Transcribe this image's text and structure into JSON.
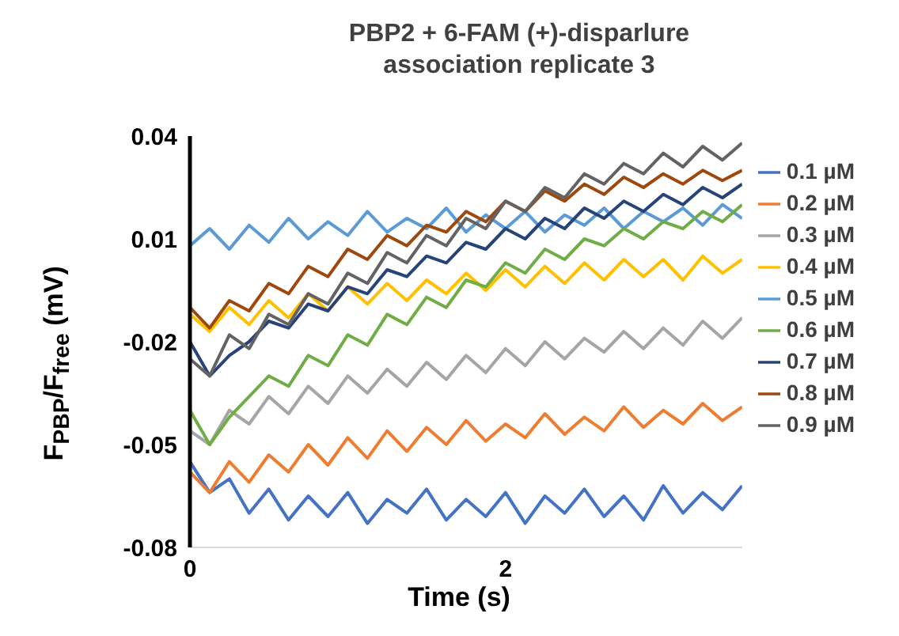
{
  "chart_data": {
    "type": "line",
    "title": "PBP2 + 6-FAM (+)-disparlure association replicate 3",
    "xlabel": "Time (s)",
    "ylabel": "F$_{PBP}$/F$_{free}$ (mV)",
    "legend": "right",
    "x": [
      0,
      0.125,
      0.25,
      0.375,
      0.5,
      0.625,
      0.75,
      0.875,
      1,
      1.125,
      1.25,
      1.375,
      1.5,
      1.625,
      1.75,
      1.875,
      2,
      2.125,
      2.25,
      2.375,
      2.5,
      2.625,
      2.75,
      2.875,
      3,
      3.125,
      3.25,
      3.375,
      3.5
    ],
    "xlim": [
      0,
      3.5
    ],
    "xticks": [
      0,
      2
    ],
    "ylim": [
      -0.08,
      0.04
    ],
    "yticks": [
      -0.08,
      -0.05,
      -0.02,
      0.01,
      0.04
    ],
    "series": [
      {
        "name": "0.1 µM",
        "color": "#4472c4",
        "values": [
          -0.055,
          -0.064,
          -0.06,
          -0.07,
          -0.063,
          -0.072,
          -0.065,
          -0.071,
          -0.064,
          -0.073,
          -0.066,
          -0.07,
          -0.063,
          -0.072,
          -0.066,
          -0.071,
          -0.064,
          -0.073,
          -0.065,
          -0.07,
          -0.063,
          -0.071,
          -0.065,
          -0.072,
          -0.062,
          -0.07,
          -0.064,
          -0.069,
          -0.062
        ]
      },
      {
        "name": "0.2 µM",
        "color": "#ed7d31",
        "values": [
          -0.058,
          -0.064,
          -0.055,
          -0.061,
          -0.053,
          -0.058,
          -0.05,
          -0.056,
          -0.048,
          -0.054,
          -0.046,
          -0.052,
          -0.045,
          -0.05,
          -0.043,
          -0.049,
          -0.044,
          -0.048,
          -0.041,
          -0.047,
          -0.042,
          -0.046,
          -0.039,
          -0.045,
          -0.04,
          -0.044,
          -0.038,
          -0.043,
          -0.039
        ]
      },
      {
        "name": "0.3 µM",
        "color": "#a5a5a5",
        "values": [
          -0.046,
          -0.05,
          -0.04,
          -0.044,
          -0.036,
          -0.041,
          -0.033,
          -0.038,
          -0.03,
          -0.035,
          -0.028,
          -0.033,
          -0.026,
          -0.031,
          -0.024,
          -0.029,
          -0.022,
          -0.027,
          -0.02,
          -0.025,
          -0.019,
          -0.023,
          -0.017,
          -0.022,
          -0.016,
          -0.021,
          -0.014,
          -0.019,
          -0.013
        ]
      },
      {
        "name": "0.4 µM",
        "color": "#ffc000",
        "values": [
          -0.012,
          -0.017,
          -0.01,
          -0.015,
          -0.008,
          -0.013,
          -0.006,
          -0.011,
          -0.004,
          -0.009,
          -0.003,
          -0.008,
          -0.002,
          -0.006,
          0.0,
          -0.005,
          0.001,
          -0.004,
          0.002,
          -0.003,
          0.003,
          -0.002,
          0.004,
          -0.001,
          0.004,
          -0.002,
          0.005,
          0.0,
          0.004
        ]
      },
      {
        "name": "0.5 µM",
        "color": "#5b9bd5",
        "values": [
          0.008,
          0.013,
          0.007,
          0.014,
          0.009,
          0.016,
          0.01,
          0.015,
          0.011,
          0.018,
          0.012,
          0.016,
          0.013,
          0.019,
          0.012,
          0.017,
          0.013,
          0.018,
          0.012,
          0.017,
          0.014,
          0.019,
          0.013,
          0.018,
          0.015,
          0.019,
          0.014,
          0.02,
          0.016
        ]
      },
      {
        "name": "0.6 µM",
        "color": "#70ad47",
        "values": [
          -0.04,
          -0.05,
          -0.042,
          -0.036,
          -0.03,
          -0.033,
          -0.024,
          -0.027,
          -0.018,
          -0.021,
          -0.012,
          -0.015,
          -0.007,
          -0.01,
          -0.002,
          -0.004,
          0.003,
          0.0,
          0.007,
          0.004,
          0.01,
          0.008,
          0.013,
          0.01,
          0.015,
          0.013,
          0.018,
          0.015,
          0.02
        ]
      },
      {
        "name": "0.7 µM",
        "color": "#264478",
        "values": [
          -0.02,
          -0.03,
          -0.024,
          -0.02,
          -0.014,
          -0.016,
          -0.009,
          -0.011,
          -0.004,
          -0.006,
          0.001,
          -0.001,
          0.005,
          0.003,
          0.009,
          0.007,
          0.013,
          0.01,
          0.016,
          0.013,
          0.019,
          0.016,
          0.021,
          0.018,
          0.023,
          0.02,
          0.025,
          0.022,
          0.026
        ]
      },
      {
        "name": "0.8 µM",
        "color": "#9e480e",
        "values": [
          -0.01,
          -0.016,
          -0.008,
          -0.011,
          -0.003,
          -0.006,
          0.002,
          -0.001,
          0.007,
          0.004,
          0.011,
          0.008,
          0.014,
          0.012,
          0.018,
          0.015,
          0.021,
          0.018,
          0.024,
          0.021,
          0.026,
          0.023,
          0.028,
          0.025,
          0.029,
          0.026,
          0.03,
          0.027,
          0.03
        ]
      },
      {
        "name": "0.9 µM",
        "color": "#636363",
        "values": [
          -0.025,
          -0.03,
          -0.018,
          -0.022,
          -0.012,
          -0.015,
          -0.006,
          -0.009,
          0.0,
          -0.003,
          0.006,
          0.003,
          0.011,
          0.008,
          0.016,
          0.013,
          0.021,
          0.018,
          0.025,
          0.022,
          0.029,
          0.026,
          0.032,
          0.029,
          0.035,
          0.031,
          0.037,
          0.033,
          0.038
        ]
      }
    ]
  }
}
